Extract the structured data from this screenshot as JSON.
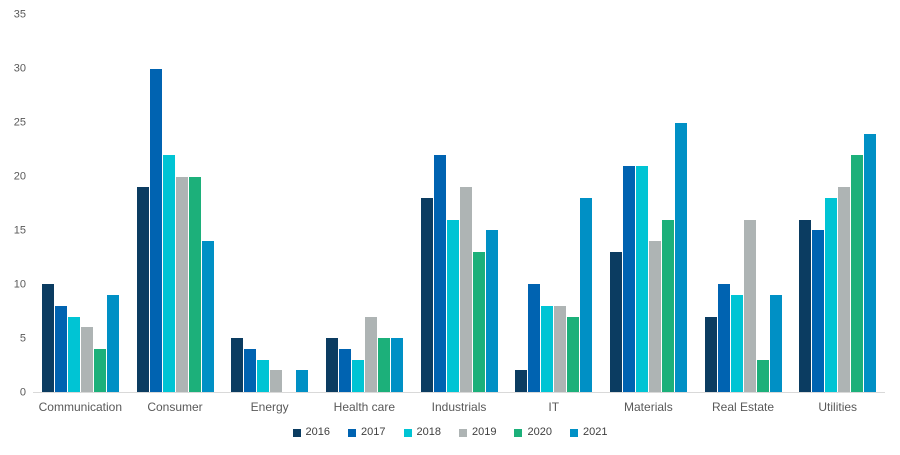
{
  "chart_data": {
    "type": "bar",
    "categories": [
      "Communication",
      "Consumer",
      "Energy",
      "Health care",
      "Industrials",
      "IT",
      "Materials",
      "Real Estate",
      "Utilities"
    ],
    "series": [
      {
        "name": "2016",
        "color": "#0b3c61",
        "values": [
          10,
          19,
          5,
          5,
          18,
          2,
          13,
          7,
          16
        ]
      },
      {
        "name": "2017",
        "color": "#0063b1",
        "values": [
          8,
          30,
          4,
          4,
          22,
          10,
          21,
          10,
          15
        ]
      },
      {
        "name": "2018",
        "color": "#00c4d4",
        "values": [
          7,
          22,
          3,
          3,
          16,
          8,
          21,
          9,
          18
        ]
      },
      {
        "name": "2019",
        "color": "#aeb4b4",
        "values": [
          6,
          20,
          2,
          7,
          19,
          8,
          14,
          16,
          19
        ]
      },
      {
        "name": "2020",
        "color": "#1cb07a",
        "values": [
          4,
          20,
          0,
          5,
          13,
          7,
          16,
          3,
          22
        ]
      },
      {
        "name": "2021",
        "color": "#0090c5",
        "values": [
          9,
          14,
          2,
          5,
          15,
          18,
          25,
          9,
          24
        ]
      }
    ],
    "ylim": [
      0,
      35
    ],
    "yticks": [
      0,
      5,
      10,
      15,
      20,
      25,
      30,
      35
    ],
    "grid": false,
    "legend_position": "bottom",
    "axis_tick_color": "#595959",
    "axis_line_color": "#d9d9d9"
  }
}
